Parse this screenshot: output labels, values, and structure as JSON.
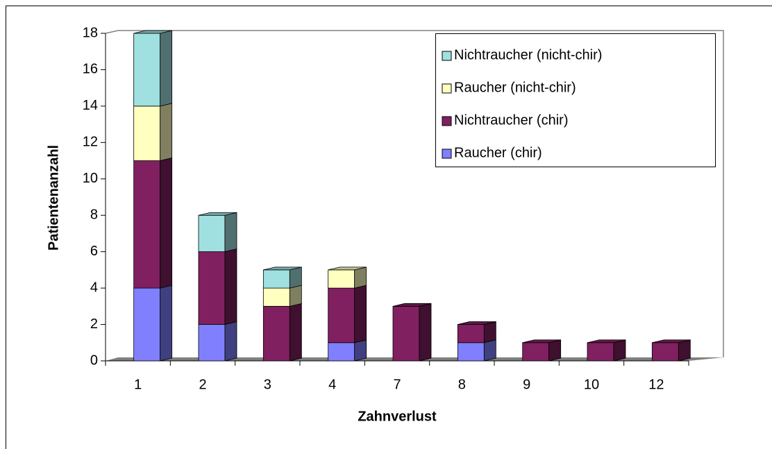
{
  "chart_data": {
    "type": "bar3d_stacked",
    "xlabel": "Zahnverlust",
    "ylabel": "Patientenanzahl",
    "categories": [
      "1",
      "2",
      "3",
      "4",
      "7",
      "8",
      "9",
      "10",
      "12"
    ],
    "series": [
      {
        "name": "Raucher (chir)",
        "color": "#8080ff",
        "values": [
          4,
          2,
          0,
          1,
          0,
          1,
          0,
          0,
          0
        ]
      },
      {
        "name": "Nichtraucher (chir)",
        "color": "#802060",
        "values": [
          7,
          4,
          3,
          3,
          3,
          1,
          1,
          1,
          1
        ]
      },
      {
        "name": "Raucher (nicht-chir)",
        "color": "#ffffc0",
        "values": [
          3,
          0,
          1,
          1,
          0,
          0,
          0,
          0,
          0
        ]
      },
      {
        "name": "Nichtraucher (nicht-chir)",
        "color": "#a0e0e0",
        "values": [
          4,
          2,
          1,
          0,
          0,
          0,
          0,
          0,
          0
        ]
      }
    ],
    "ylim": [
      0,
      18
    ],
    "yticks": [
      0,
      2,
      4,
      6,
      8,
      10,
      12,
      14,
      16,
      18
    ],
    "legend": "upper right"
  }
}
